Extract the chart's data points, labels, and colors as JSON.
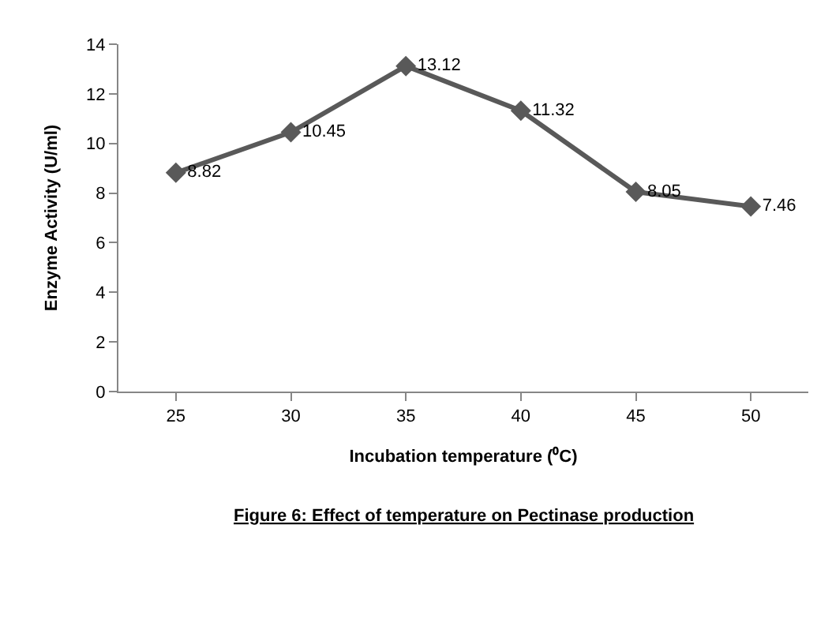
{
  "chart_data": {
    "type": "line",
    "xlabel": "Incubation temperature (⁰C)",
    "ylabel": "Enzyme Activity (U/ml)",
    "categories": [
      "25",
      "30",
      "35",
      "40",
      "45",
      "50"
    ],
    "series": [
      {
        "color": "#595959",
        "values": [
          8.82,
          10.45,
          13.12,
          11.32,
          8.05,
          7.46
        ]
      }
    ],
    "ylim": [
      0,
      14
    ],
    "yticks": [
      0,
      2,
      4,
      6,
      8,
      10,
      12,
      14
    ],
    "legend": false,
    "marker": "diamond",
    "line_style": "solid",
    "data_labels": true,
    "annotations": [
      "Figure 6: Effect of temperature on Pectinase production"
    ]
  }
}
